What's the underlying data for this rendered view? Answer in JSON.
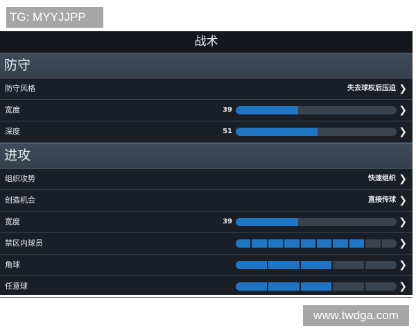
{
  "watermarks": {
    "top": "TG: MYYJJPP",
    "bottom": "www.twdga.com"
  },
  "title": "战术",
  "defense": {
    "header": "防守",
    "rows": [
      {
        "label": "防守风格",
        "type": "option",
        "value": "失去球权后压迫"
      },
      {
        "label": "宽度",
        "type": "slider",
        "value": 39
      },
      {
        "label": "深度",
        "type": "slider",
        "value": 51
      }
    ]
  },
  "attack": {
    "header": "进攻",
    "rows": [
      {
        "label": "组织攻势",
        "type": "option",
        "value": "快速组织"
      },
      {
        "label": "创造机会",
        "type": "option",
        "value": "直接传球"
      },
      {
        "label": "宽度",
        "type": "slider",
        "value": 39
      },
      {
        "label": "禁区内球员",
        "type": "segments",
        "filled": 8,
        "total": 10
      },
      {
        "label": "角球",
        "type": "segments",
        "filled": 3,
        "total": 5
      },
      {
        "label": "任意球",
        "type": "segments",
        "filled": 3,
        "total": 5
      }
    ]
  },
  "colors": {
    "accent": "#1f74c4",
    "track": "#3a4450",
    "background": "#1a1e26"
  },
  "icons": {
    "row_action": "chevron-right-icon"
  }
}
